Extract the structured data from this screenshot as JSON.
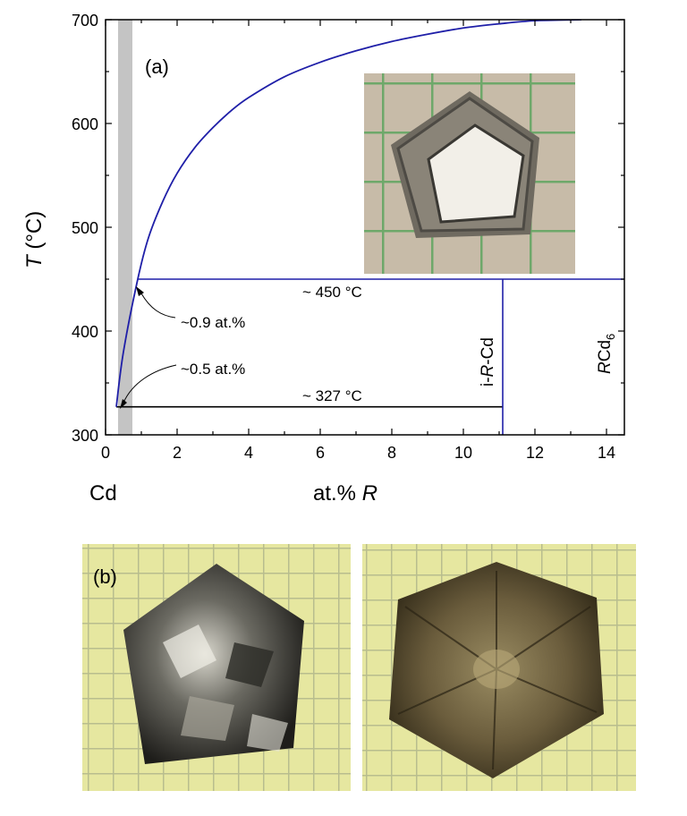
{
  "chart_data": {
    "type": "line",
    "panel_label": "(a)",
    "xlim": [
      0,
      14.5
    ],
    "ylim": [
      300,
      700
    ],
    "x_ticks": [
      0,
      2,
      4,
      6,
      8,
      10,
      12,
      14
    ],
    "y_ticks": [
      300,
      400,
      500,
      600,
      700
    ],
    "xlabel_prefix": "at.% ",
    "xlabel_italic": "R",
    "ylabel_italic": "T",
    "ylabel_unit": " (°C)",
    "x_origin_label": "Cd",
    "series": [
      {
        "color": "#1f1fa8",
        "x": [
          0.3,
          0.5,
          0.9,
          1.2,
          1.6,
          2.0,
          2.5,
          3.0,
          3.5,
          4.0,
          5.0,
          6.0,
          7.0,
          8.0,
          9.0,
          10.0,
          11.0,
          12.0,
          13.3
        ],
        "y": [
          327,
          380,
          450,
          490,
          525,
          552,
          577,
          596,
          612,
          625,
          645,
          659,
          670,
          679,
          686,
          692,
          696,
          699,
          700
        ]
      }
    ],
    "shaded_region_x": [
      0.35,
      0.75
    ],
    "horizontal_lines": [
      {
        "y": 450,
        "x": [
          0.9,
          14.5
        ],
        "color": "#1f1fa8",
        "label": "~ 450 °C"
      },
      {
        "y": 327,
        "x": [
          0.3,
          11.1
        ],
        "color": "#000000",
        "label": "~ 327 °C"
      }
    ],
    "vertical_lines": [
      {
        "x": 11.1,
        "y": [
          300,
          450
        ],
        "color": "#1f1fa8"
      }
    ],
    "annotations": [
      {
        "text": "~0.9 at.%",
        "x": 0.9,
        "y": 450
      },
      {
        "text": "~0.5 at.%",
        "x": 0.35,
        "y": 327
      }
    ],
    "phase_labels": [
      {
        "pre": "i-",
        "italic": "R",
        "post": "-Cd",
        "color": "#1f1fa8"
      },
      {
        "italic": "R",
        "post": "Cd",
        "sub": "6",
        "color": "#000000"
      }
    ]
  },
  "panel_b_label": "(b)"
}
